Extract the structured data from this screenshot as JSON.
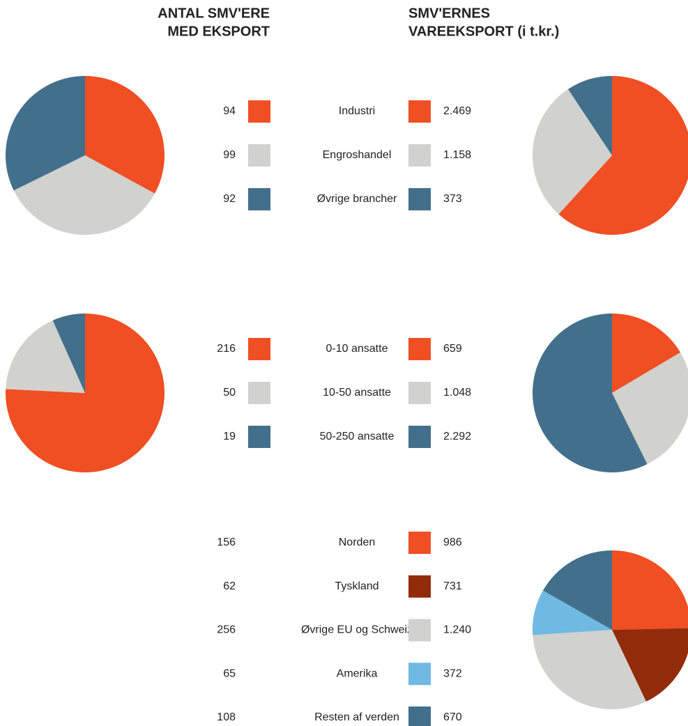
{
  "titles": [
    [
      "ANTAL SMV'ERE",
      "MED EKSPORT"
    ],
    [
      "SMV'ERNES",
      "VAREEKSPORT (i t.kr.)"
    ]
  ],
  "chart_data": [
    {
      "type": "pie",
      "categories": [
        "Industri",
        "Engroshandel",
        "Øvrige brancher"
      ],
      "colors": [
        "#f04e23",
        "#d1d1cd",
        "#42708c"
      ],
      "series": [
        {
          "values": [
            94,
            99,
            92
          ],
          "show_pie": true
        },
        {
          "values": [
            2469,
            1158,
            373
          ],
          "value_labels": [
            "2.469",
            "1.158",
            "373"
          ],
          "show_pie": true
        }
      ]
    },
    {
      "type": "pie",
      "categories": [
        "0-10 ansatte",
        "10-50 ansatte",
        "50-250 ansatte"
      ],
      "colors": [
        "#f04e23",
        "#d1d1cd",
        "#42708c"
      ],
      "series": [
        {
          "values": [
            216,
            50,
            19
          ],
          "show_pie": true
        },
        {
          "values": [
            659,
            1048,
            2292
          ],
          "value_labels": [
            "659",
            "1.048",
            "2.292"
          ],
          "show_pie": true
        }
      ]
    },
    {
      "type": "pie",
      "categories": [
        "Norden",
        "Tyskland",
        "Øvrige EU og Schweiz",
        "Amerika",
        "Resten af verden"
      ],
      "colors": [
        "#f04e23",
        "#922b0a",
        "#d1d1cd",
        "#6fb9e3",
        "#42708c"
      ],
      "series": [
        {
          "values": [
            156,
            62,
            256,
            65,
            108
          ],
          "show_pie": false
        },
        {
          "values": [
            986,
            731,
            1240,
            372,
            670
          ],
          "value_labels": [
            "986",
            "731",
            "1.240",
            "372",
            "670"
          ],
          "show_pie": true
        }
      ]
    }
  ]
}
